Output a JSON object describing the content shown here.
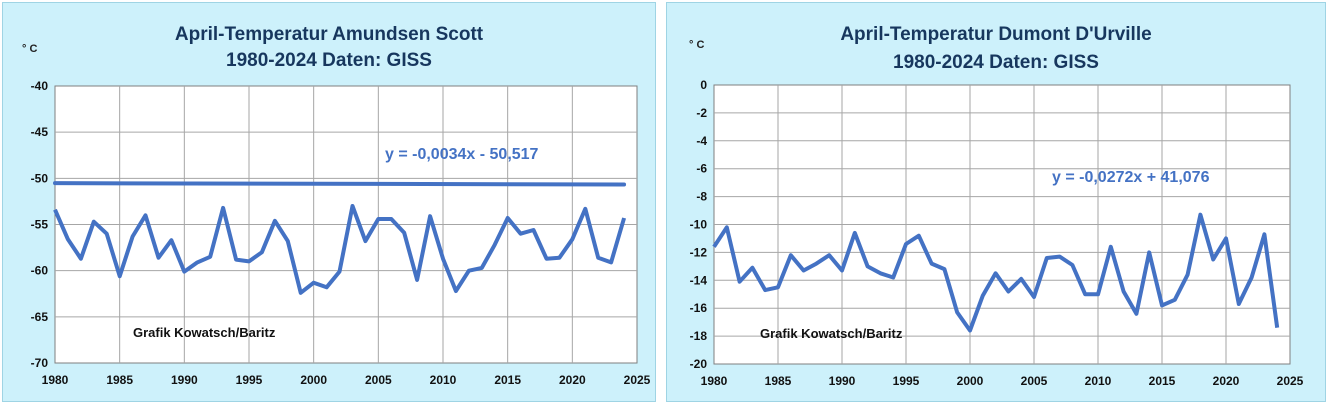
{
  "colors": {
    "background": "#cdf1fb",
    "plot": "#ffffff",
    "grid": "#a6a6a6",
    "series": "#4472c4",
    "title": "#17375e"
  },
  "chart_data": [
    {
      "type": "line",
      "title_line1": "April-Temperatur Amundsen Scott",
      "title_line2": "1980-2024 Daten: GISS",
      "ylabel": "° C",
      "xlim": [
        1980,
        2025
      ],
      "ylim": [
        -70,
        -40
      ],
      "xticks": [
        "1980",
        "1985",
        "1990",
        "1995",
        "2000",
        "2005",
        "2010",
        "2015",
        "2020",
        "2025"
      ],
      "yticks": [
        "-40",
        "-45",
        "-50",
        "-55",
        "-60",
        "-65",
        "-70"
      ],
      "grid": true,
      "equation": "y = -0,0034x - 50,517",
      "credit": "Grafik Kowatsch/Baritz",
      "trend": {
        "slope": -0.0034,
        "intercept": -50.517
      },
      "x": [
        1980,
        1981,
        1982,
        1983,
        1984,
        1985,
        1986,
        1987,
        1988,
        1989,
        1990,
        1991,
        1992,
        1993,
        1994,
        1995,
        1996,
        1997,
        1998,
        1999,
        2000,
        2001,
        2002,
        2003,
        2004,
        2005,
        2006,
        2007,
        2008,
        2009,
        2010,
        2011,
        2012,
        2013,
        2014,
        2015,
        2016,
        2017,
        2018,
        2019,
        2020,
        2021,
        2022,
        2023,
        2024
      ],
      "values": [
        -53.4,
        -56.6,
        -58.7,
        -54.7,
        -56.0,
        -60.6,
        -56.3,
        -54.0,
        -58.6,
        -56.7,
        -60.1,
        -59.1,
        -58.5,
        -53.2,
        -58.8,
        -59.0,
        -58.0,
        -54.6,
        -56.8,
        -62.4,
        -61.3,
        -61.8,
        -60.1,
        -53.0,
        -56.8,
        -54.4,
        -54.4,
        -55.9,
        -61.0,
        -54.1,
        -58.7,
        -62.2,
        -60.0,
        -59.7,
        -57.2,
        -54.3,
        -56.0,
        -55.6,
        -58.7,
        -58.6,
        -56.6,
        -53.3,
        -58.6,
        -59.1,
        -54.3
      ]
    },
    {
      "type": "line",
      "title_line1": "April-Temperatur Dumont D'Urville",
      "title_line2": "1980-2024 Daten: GISS",
      "ylabel": "° C",
      "xlim": [
        1980,
        2025
      ],
      "ylim": [
        -20,
        0
      ],
      "xticks": [
        "1980",
        "1985",
        "1990",
        "1995",
        "2000",
        "2005",
        "2010",
        "2015",
        "2020",
        "2025"
      ],
      "yticks": [
        "0",
        "-2",
        "-4",
        "-6",
        "-8",
        "-10",
        "-12",
        "-14",
        "-16",
        "-18",
        "-20"
      ],
      "grid": true,
      "equation": "y = -0,0272x + 41,076",
      "credit": "Grafik Kowatsch/Baritz",
      "trend": {
        "slope": -0.0272,
        "intercept": 41.076
      },
      "x": [
        1980,
        1981,
        1982,
        1983,
        1984,
        1985,
        1986,
        1987,
        1988,
        1989,
        1990,
        1991,
        1992,
        1993,
        1994,
        1995,
        1996,
        1997,
        1998,
        1999,
        2000,
        2001,
        2002,
        2003,
        2004,
        2005,
        2006,
        2007,
        2008,
        2009,
        2010,
        2011,
        2012,
        2013,
        2014,
        2015,
        2016,
        2017,
        2018,
        2019,
        2020,
        2021,
        2022,
        2023,
        2024
      ],
      "values": [
        -11.6,
        -10.2,
        -14.1,
        -13.1,
        -14.7,
        -14.5,
        -12.2,
        -13.3,
        -12.8,
        -12.2,
        -13.3,
        -10.6,
        -13.0,
        -13.5,
        -13.8,
        -11.4,
        -10.8,
        -12.8,
        -13.2,
        -16.3,
        -17.6,
        -15.1,
        -13.5,
        -14.8,
        -13.9,
        -15.2,
        -12.4,
        -12.3,
        -12.9,
        -15.0,
        -15.0,
        -11.6,
        -14.8,
        -16.4,
        -12.0,
        -15.8,
        -15.4,
        -13.6,
        -9.3,
        -12.5,
        -11.0,
        -15.7,
        -13.8,
        -10.7,
        -17.4
      ]
    }
  ]
}
